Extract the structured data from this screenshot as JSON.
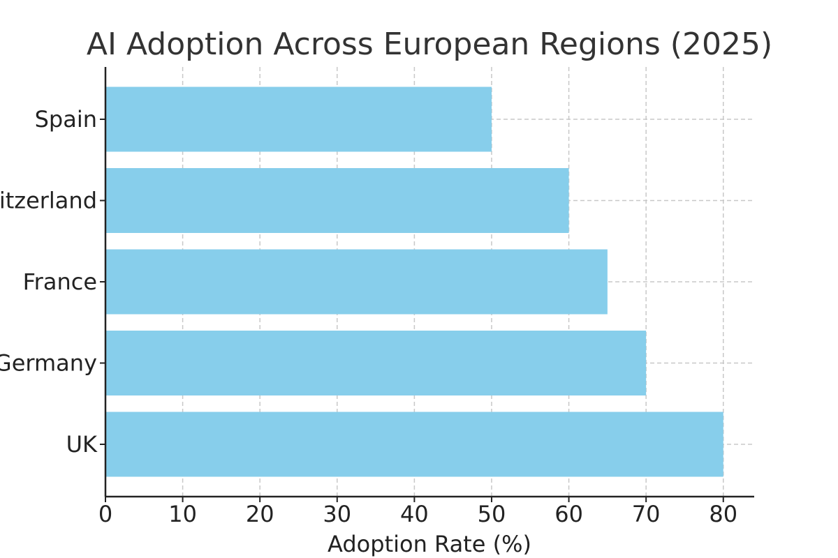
{
  "chart_data": {
    "type": "bar",
    "orientation": "horizontal",
    "title": "AI Adoption Across European Regions (2025)",
    "xlabel": "Adoption Rate (%)",
    "ylabel": "",
    "categories": [
      "UK",
      "Germany",
      "France",
      "Switzerland",
      "Spain"
    ],
    "values": [
      80,
      70,
      65,
      60,
      50
    ],
    "xlim": [
      0,
      84
    ],
    "xticks": [
      0,
      10,
      20,
      30,
      40,
      50,
      60,
      70,
      80
    ],
    "grid": true,
    "bar_color": "#87CEEB"
  }
}
